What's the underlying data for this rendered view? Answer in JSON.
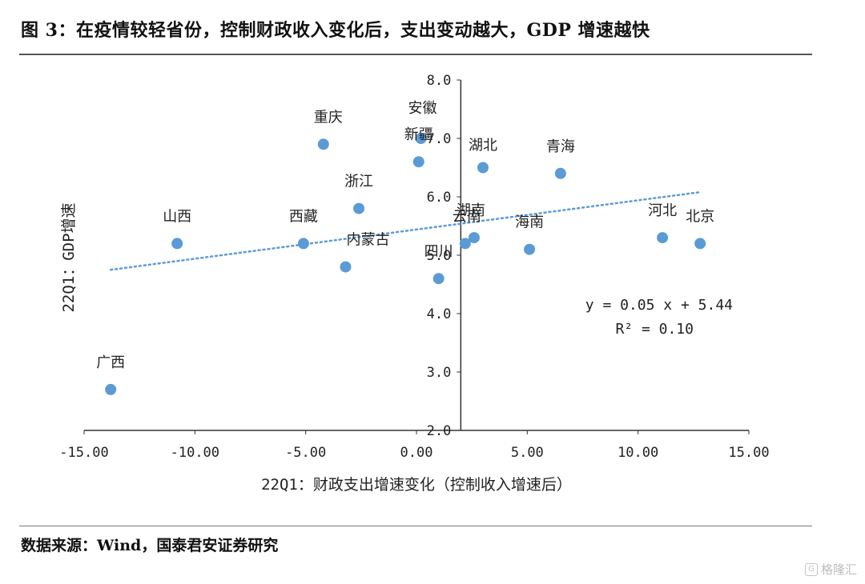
{
  "header": {
    "title": "图 3：在疫情较轻省份，控制财政收入变化后，支出变动越大，GDP 增速越快"
  },
  "footer": {
    "source": "数据来源：Wind，国泰君安证券研究"
  },
  "watermark": {
    "icon": "G",
    "text": "格隆汇"
  },
  "chart_data": {
    "type": "scatter",
    "xlabel": "22Q1：财政支出增速变化（控制收入增速后）",
    "ylabel": "22Q1：GDP增速",
    "xlim": [
      -15,
      15
    ],
    "ylim": [
      2,
      8
    ],
    "x_ticks": [
      "-15.00",
      "-10.00",
      "-5.00",
      "0.00",
      "5.00",
      "10.00",
      "15.00"
    ],
    "y_ticks": [
      "2.0",
      "3.0",
      "4.0",
      "5.0",
      "6.0",
      "7.0",
      "8.0"
    ],
    "y_axis_at_x": 2,
    "marker_color": "#5b9bd5",
    "trendline_color": "#5b9bd5",
    "points": [
      {
        "name": "广西",
        "x": -13.8,
        "y": 2.7
      },
      {
        "name": "山西",
        "x": -10.8,
        "y": 5.2
      },
      {
        "name": "重庆",
        "x": -4.2,
        "y": 6.9
      },
      {
        "name": "西藏",
        "x": -5.1,
        "y": 5.2
      },
      {
        "name": "内蒙古",
        "x": -3.2,
        "y": 4.8
      },
      {
        "name": "浙江",
        "x": -2.6,
        "y": 5.8
      },
      {
        "name": "安徽",
        "x": 0.2,
        "y": 7.0
      },
      {
        "name": "新疆",
        "x": 0.1,
        "y": 6.6
      },
      {
        "name": "湖北",
        "x": 3.0,
        "y": 6.5
      },
      {
        "name": "青海",
        "x": 6.5,
        "y": 6.4
      },
      {
        "name": "湖南",
        "x": 2.6,
        "y": 5.3
      },
      {
        "name": "云南",
        "x": 2.2,
        "y": 5.2
      },
      {
        "name": "四川",
        "x": 1.0,
        "y": 4.6
      },
      {
        "name": "海南",
        "x": 5.1,
        "y": 5.1
      },
      {
        "name": "河北",
        "x": 11.1,
        "y": 5.3
      },
      {
        "name": "北京",
        "x": 12.8,
        "y": 5.2
      }
    ],
    "trendline": {
      "type": "linear",
      "slope": 0.05,
      "intercept": 5.44,
      "x_range": [
        -13.8,
        12.8
      ],
      "equation": "y = 0.05 x + 5.44",
      "r_squared": "R² = 0.10"
    },
    "grid": false,
    "legend": "none"
  }
}
